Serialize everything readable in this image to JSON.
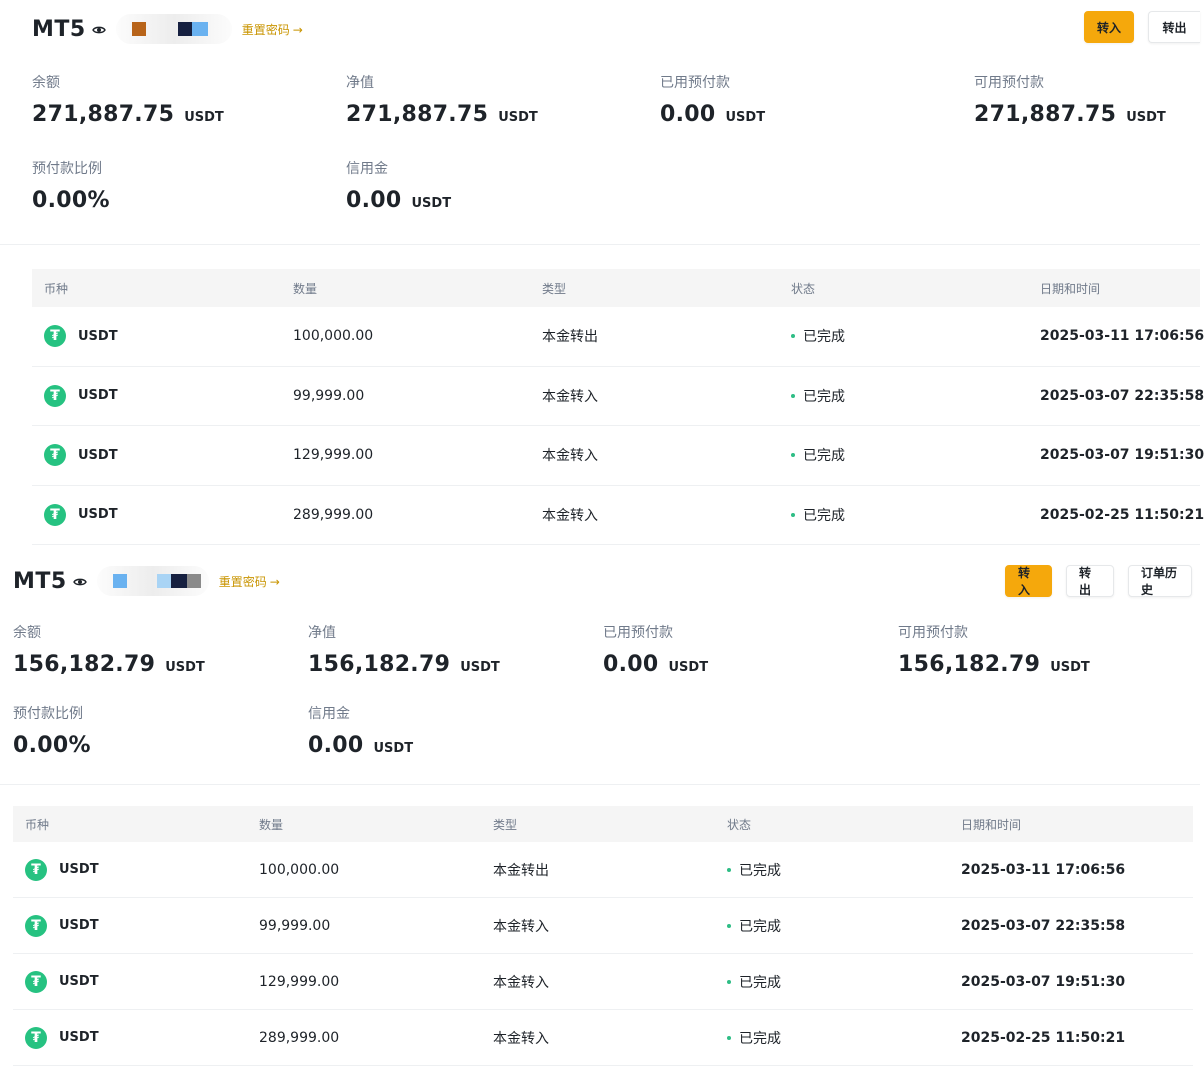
{
  "colors": {
    "accent": "#f5a80c",
    "link": "#c99400",
    "coin": "#26c281",
    "status_dot": "#2ebd85"
  },
  "icons": {
    "eye": "eye-icon",
    "arrow": "arrow-right-icon",
    "coin": "tether-icon"
  },
  "accounts": [
    {
      "title": "MT5",
      "reset_password": "重置密码",
      "buttons": [
        "转入",
        "转出"
      ],
      "stats": [
        {
          "label": "余额",
          "value": "271,887.75",
          "unit": "USDT"
        },
        {
          "label": "净值",
          "value": "271,887.75",
          "unit": "USDT"
        },
        {
          "label": "已用预付款",
          "value": "0.00",
          "unit": "USDT"
        },
        {
          "label": "可用预付款",
          "value": "271,887.75",
          "unit": "USDT"
        },
        {
          "label": "预付款比例",
          "value": "0.00%",
          "unit": ""
        },
        {
          "label": "信用金",
          "value": "0.00",
          "unit": "USDT"
        }
      ],
      "table": {
        "headers": [
          "币种",
          "数量",
          "类型",
          "状态",
          "日期和时间"
        ],
        "rows": [
          {
            "coin": "USDT",
            "amount": "100,000.00",
            "type": "本金转出",
            "status": "已完成",
            "datetime": "2025-03-11 17:06:56"
          },
          {
            "coin": "USDT",
            "amount": "99,999.00",
            "type": "本金转入",
            "status": "已完成",
            "datetime": "2025-03-07 22:35:58"
          },
          {
            "coin": "USDT",
            "amount": "129,999.00",
            "type": "本金转入",
            "status": "已完成",
            "datetime": "2025-03-07 19:51:30"
          },
          {
            "coin": "USDT",
            "amount": "289,999.00",
            "type": "本金转入",
            "status": "已完成",
            "datetime": "2025-02-25 11:50:21"
          }
        ]
      }
    },
    {
      "title": "MT5",
      "reset_password": "重置密码",
      "buttons": [
        "转入",
        "转出",
        "订单历史"
      ],
      "stats": [
        {
          "label": "余额",
          "value": "156,182.79",
          "unit": "USDT"
        },
        {
          "label": "净值",
          "value": "156,182.79",
          "unit": "USDT"
        },
        {
          "label": "已用预付款",
          "value": "0.00",
          "unit": "USDT"
        },
        {
          "label": "可用预付款",
          "value": "156,182.79",
          "unit": "USDT"
        },
        {
          "label": "预付款比例",
          "value": "0.00%",
          "unit": ""
        },
        {
          "label": "信用金",
          "value": "0.00",
          "unit": "USDT"
        }
      ],
      "table": {
        "headers": [
          "币种",
          "数量",
          "类型",
          "状态",
          "日期和时间"
        ],
        "rows": [
          {
            "coin": "USDT",
            "amount": "100,000.00",
            "type": "本金转出",
            "status": "已完成",
            "datetime": "2025-03-11 17:06:56"
          },
          {
            "coin": "USDT",
            "amount": "99,999.00",
            "type": "本金转入",
            "status": "已完成",
            "datetime": "2025-03-07 22:35:58"
          },
          {
            "coin": "USDT",
            "amount": "129,999.00",
            "type": "本金转入",
            "status": "已完成",
            "datetime": "2025-03-07 19:51:30"
          },
          {
            "coin": "USDT",
            "amount": "289,999.00",
            "type": "本金转入",
            "status": "已完成",
            "datetime": "2025-02-25 11:50:21"
          }
        ]
      }
    }
  ]
}
